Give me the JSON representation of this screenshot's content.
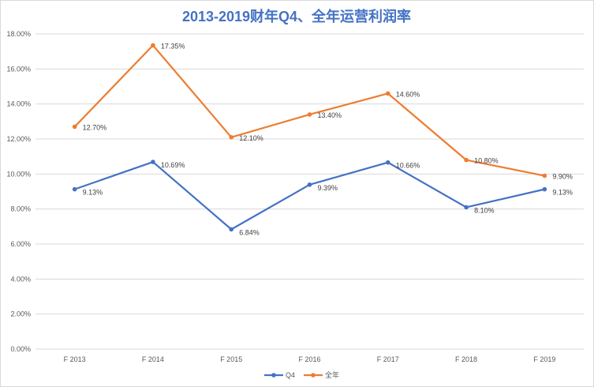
{
  "chart_data": {
    "type": "line",
    "title": "2013-2019财年Q4、全年运营利润率",
    "categories": [
      "F 2013",
      "F 2014",
      "F 2015",
      "F 2016",
      "F 2017",
      "F 2018",
      "F 2019"
    ],
    "ylim": [
      0,
      18
    ],
    "yticks": [
      0,
      2,
      4,
      6,
      8,
      10,
      12,
      14,
      16,
      18
    ],
    "ytick_labels": [
      "0.00%",
      "2.00%",
      "4.00%",
      "6.00%",
      "8.00%",
      "10.00%",
      "12.00%",
      "14.00%",
      "16.00%",
      "18.00%"
    ],
    "grid": true,
    "legend": "bottom",
    "series": [
      {
        "name": "Q4",
        "color": "#4472c4",
        "values": [
          9.13,
          10.69,
          6.84,
          9.39,
          10.66,
          8.1,
          9.13
        ],
        "labels": [
          "9.13%",
          "10.69%",
          "6.84%",
          "9.39%",
          "10.66%",
          "8.10%",
          "9.13%"
        ]
      },
      {
        "name": "全年",
        "color": "#ed7d31",
        "values": [
          12.7,
          17.35,
          12.1,
          13.4,
          14.6,
          10.8,
          9.9
        ],
        "labels": [
          "12.70%",
          "17.35%",
          "12.10%",
          "13.40%",
          "14.60%",
          "10.80%",
          "9.90%"
        ]
      }
    ]
  }
}
